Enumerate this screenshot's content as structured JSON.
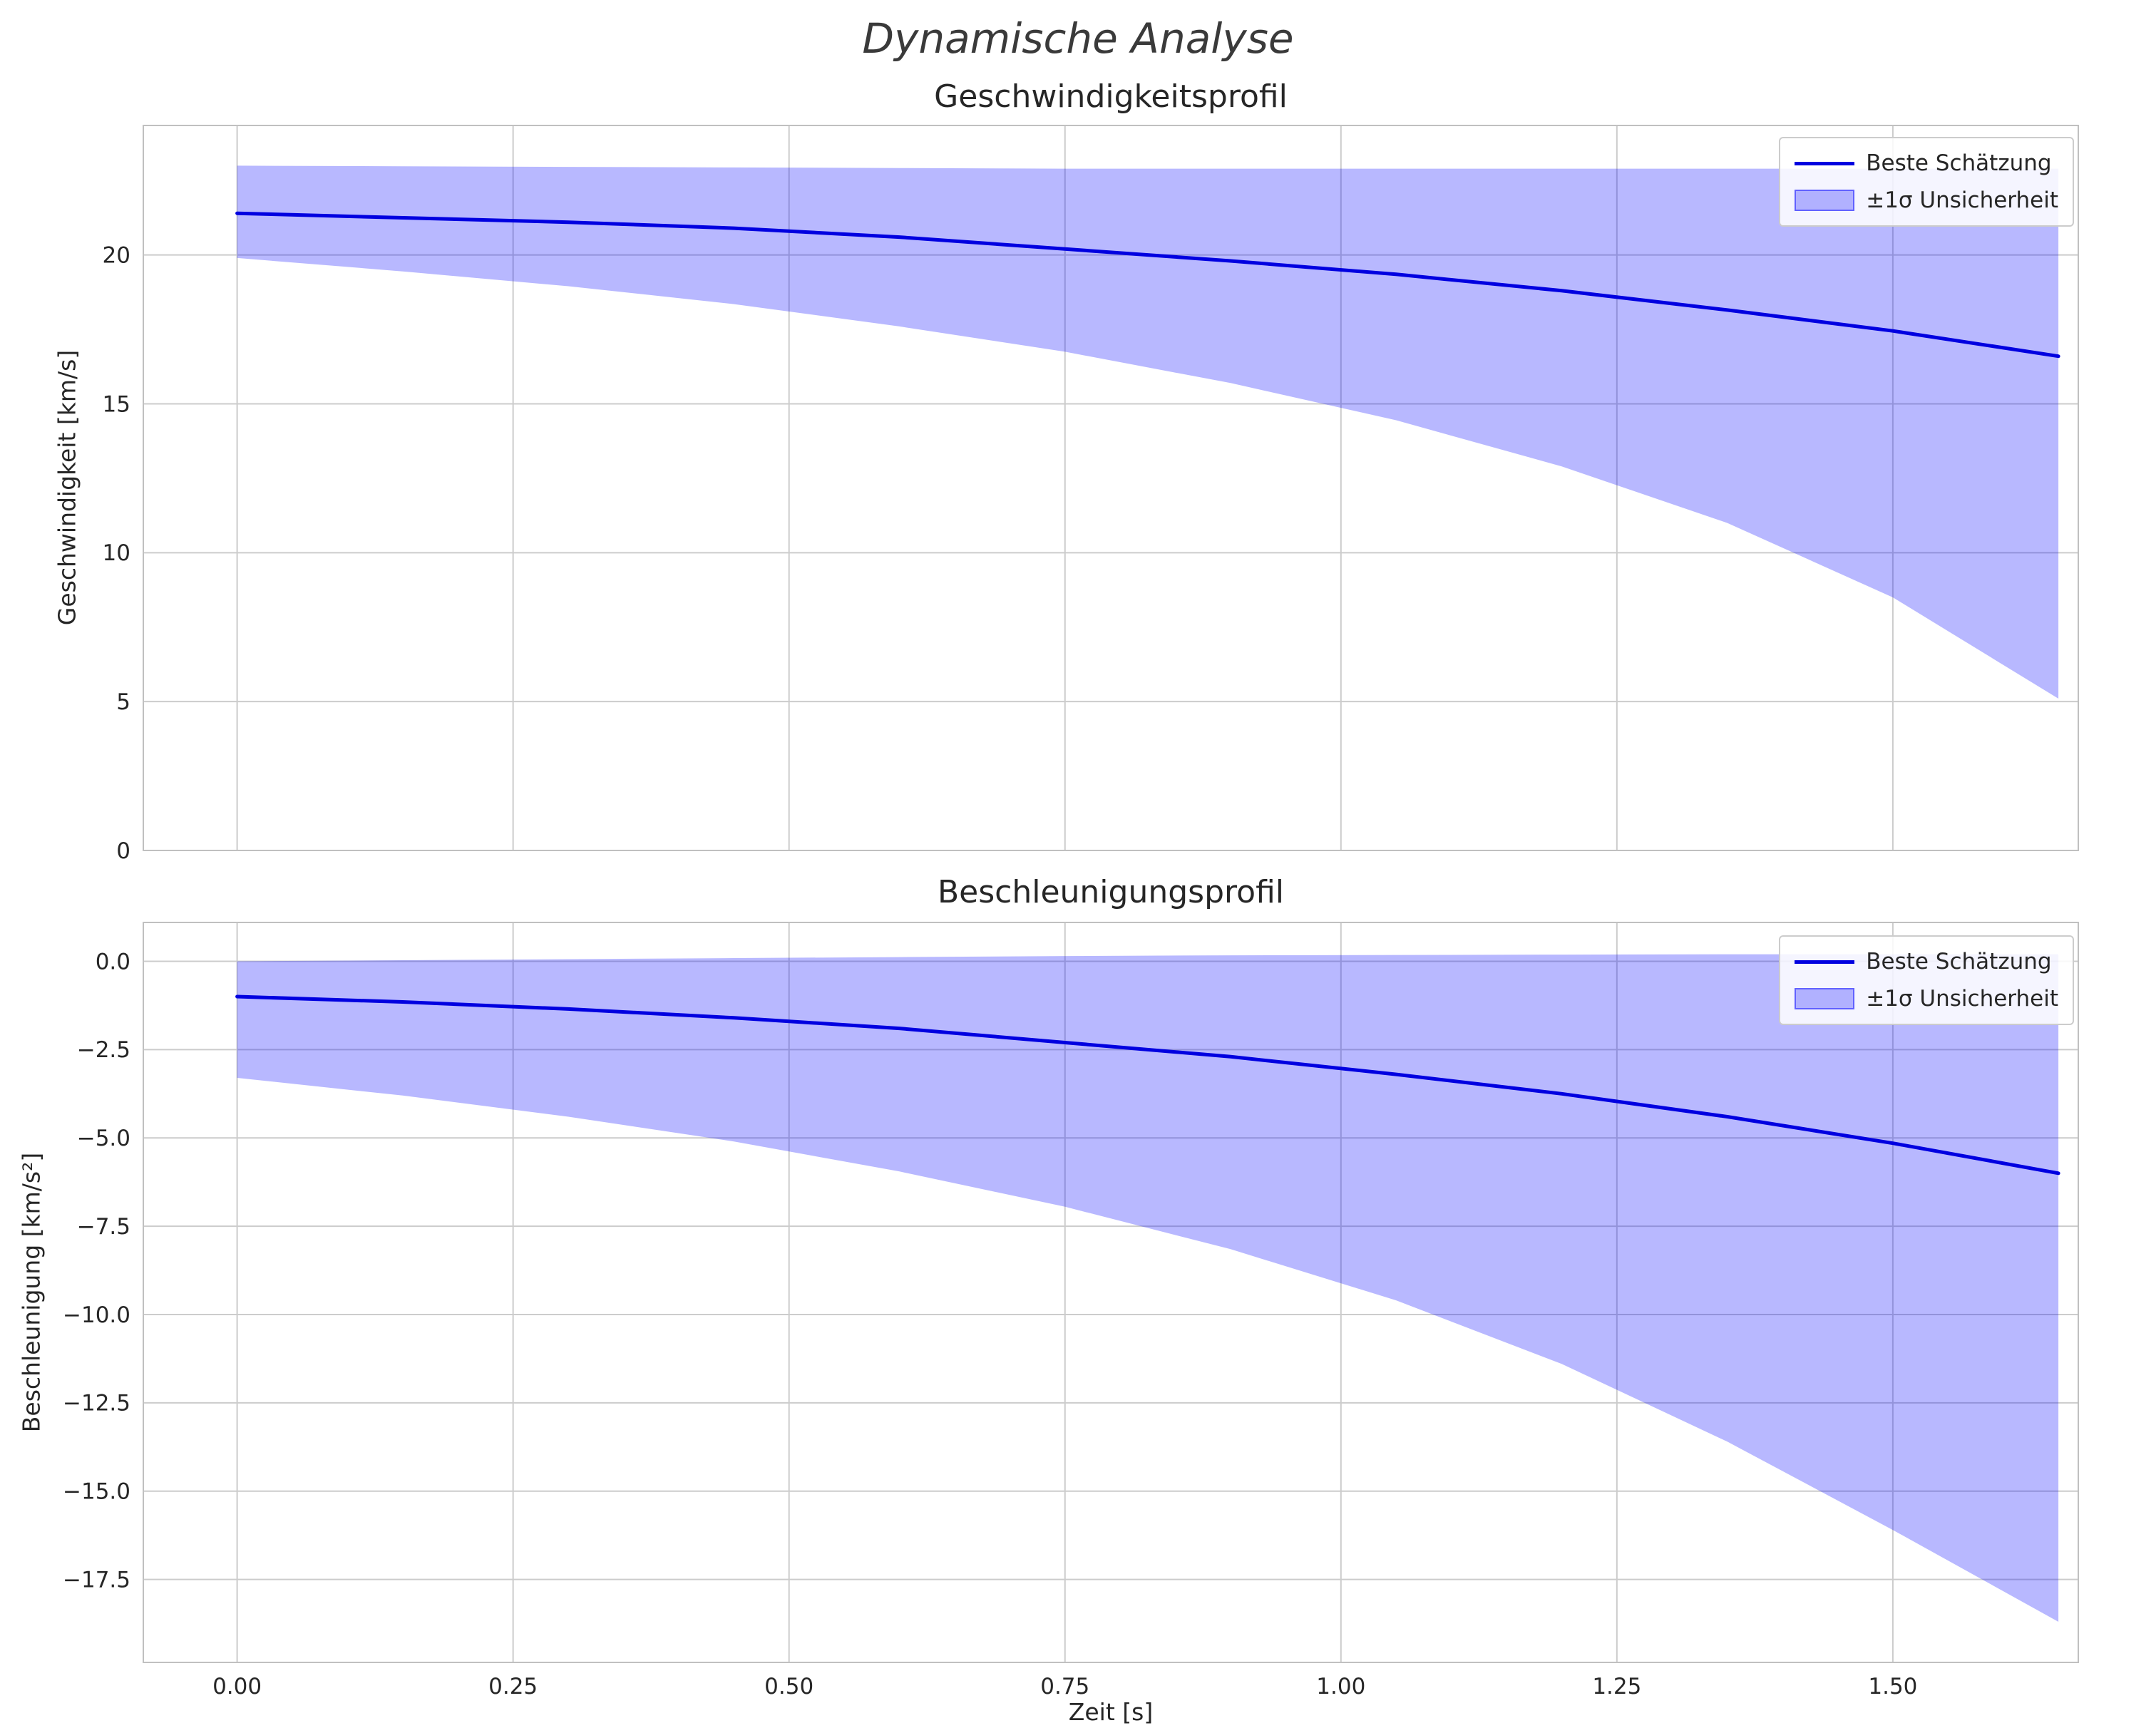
{
  "figure": {
    "suptitle": "Dynamische Analyse",
    "xlabel": "Zeit [s]",
    "xticks": [
      0.0,
      0.25,
      0.5,
      0.75,
      1.0,
      1.25,
      1.5
    ],
    "xtick_labels": [
      "0.00",
      "0.25",
      "0.50",
      "0.75",
      "1.00",
      "1.25",
      "1.50"
    ],
    "legend": {
      "position": "upper right",
      "line_label": "Beste Schätzung",
      "band_label": "±1σ Unsicherheit"
    },
    "colors": {
      "line": "#0000e0",
      "band": "#0000ff",
      "band_opacity": 0.28,
      "grid": "#cccccc",
      "spine": "#c0c0c0",
      "text": "#262626"
    }
  },
  "chart_data": [
    {
      "id": "velocity",
      "type": "line",
      "title": "Geschwindigkeitsprofil",
      "ylabel": "Geschwindigkeit [km/s]",
      "grid": true,
      "x": [
        0.0,
        0.15,
        0.3,
        0.45,
        0.6,
        0.75,
        0.9,
        1.05,
        1.2,
        1.35,
        1.5,
        1.65
      ],
      "series": [
        {
          "name": "Beste Schätzung",
          "values": [
            21.4,
            21.25,
            21.1,
            20.9,
            20.6,
            20.2,
            19.8,
            19.35,
            18.8,
            18.15,
            17.45,
            16.6
          ]
        },
        {
          "name": "+1σ",
          "values": [
            23.0,
            22.98,
            22.96,
            22.94,
            22.92,
            22.9,
            22.9,
            22.9,
            22.9,
            22.9,
            22.9,
            22.9
          ]
        },
        {
          "name": "−1σ",
          "values": [
            19.9,
            19.45,
            18.95,
            18.35,
            17.6,
            16.75,
            15.7,
            14.45,
            12.9,
            11.0,
            8.5,
            5.1
          ]
        }
      ],
      "band": {
        "upper_series": 1,
        "lower_series": 2
      },
      "xlim": [
        -0.085,
        1.668
      ],
      "ylim": [
        0,
        24.35
      ],
      "yticks": [
        0,
        5,
        10,
        15,
        20
      ],
      "ytick_labels": [
        "0",
        "5",
        "10",
        "15",
        "20"
      ],
      "show_xtick_labels": false
    },
    {
      "id": "acceleration",
      "type": "line",
      "title": "Beschleunigungsprofil",
      "ylabel": "Beschleunigung [km/s²]",
      "xlabel": "Zeit [s]",
      "grid": true,
      "x": [
        0.0,
        0.15,
        0.3,
        0.45,
        0.6,
        0.75,
        0.9,
        1.05,
        1.2,
        1.35,
        1.5,
        1.65
      ],
      "series": [
        {
          "name": "Beste Schätzung",
          "values": [
            -1.0,
            -1.15,
            -1.35,
            -1.6,
            -1.9,
            -2.3,
            -2.7,
            -3.2,
            -3.75,
            -4.4,
            -5.15,
            -6.0
          ]
        },
        {
          "name": "+1σ",
          "values": [
            0.0,
            0.03,
            0.06,
            0.09,
            0.12,
            0.15,
            0.17,
            0.18,
            0.19,
            0.2,
            0.2,
            0.2
          ]
        },
        {
          "name": "−1σ",
          "values": [
            -3.3,
            -3.8,
            -4.4,
            -5.1,
            -5.95,
            -6.95,
            -8.15,
            -9.6,
            -11.4,
            -13.6,
            -16.1,
            -18.7
          ]
        }
      ],
      "band": {
        "upper_series": 1,
        "lower_series": 2
      },
      "xlim": [
        -0.085,
        1.668
      ],
      "ylim": [
        -19.85,
        1.1
      ],
      "yticks": [
        0.0,
        -2.5,
        -5.0,
        -7.5,
        -10.0,
        -12.5,
        -15.0,
        -17.5
      ],
      "ytick_labels": [
        "0.0",
        "−2.5",
        "−5.0",
        "−7.5",
        "−10.0",
        "−12.5",
        "−15.0",
        "−17.5"
      ],
      "show_xtick_labels": true
    }
  ]
}
